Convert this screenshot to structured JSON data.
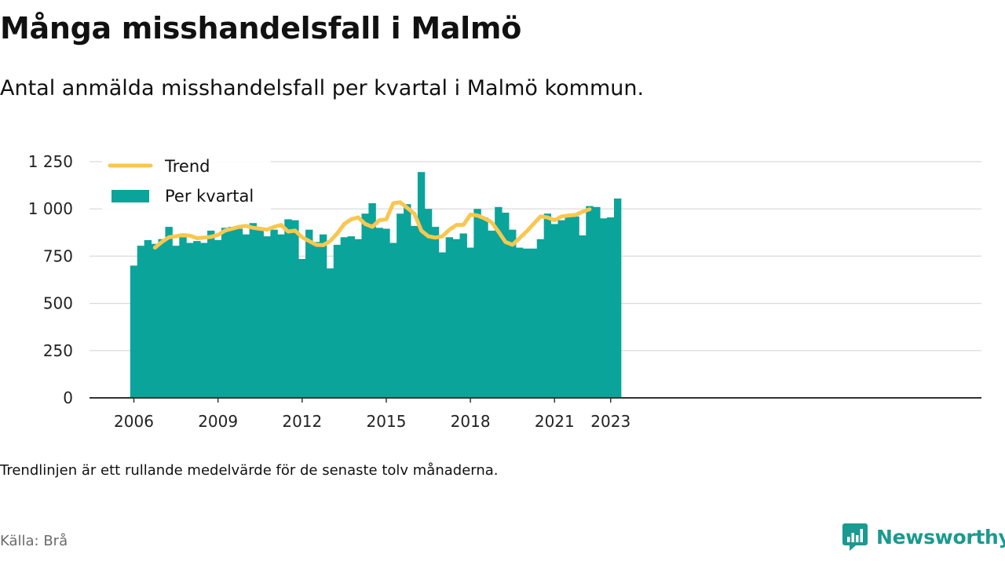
{
  "header": {
    "title": "Många misshandelsfall i Malmö",
    "subtitle": "Antal anmälda misshandelsfall per kvartal i Malmö kommun."
  },
  "footer": {
    "note": "Trendlinjen är ett rullande medelvärde för de senaste tolv månaderna.",
    "source": "Källa: Brå",
    "brand": "Newsworthy"
  },
  "colors": {
    "bars": "#0aa49a",
    "trend": "#f9c74f",
    "grid": "#d9d9d9",
    "axis": "#333333",
    "brand": "#1a9a90"
  },
  "chart_data": {
    "type": "bar",
    "x_start": "2006 Q1",
    "quarters_per_year": 4,
    "series": [
      {
        "name": "Per kvartal",
        "type": "bar",
        "values": [
          700,
          805,
          835,
          815,
          840,
          905,
          805,
          850,
          820,
          830,
          820,
          885,
          835,
          900,
          905,
          895,
          865,
          925,
          900,
          855,
          890,
          865,
          945,
          940,
          735,
          890,
          825,
          865,
          685,
          810,
          850,
          855,
          840,
          975,
          1030,
          900,
          895,
          820,
          975,
          1025,
          910,
          1195,
          1000,
          905,
          770,
          850,
          840,
          870,
          795,
          1000,
          955,
          885,
          1010,
          980,
          890,
          795,
          790,
          790,
          840,
          975,
          920,
          940,
          970,
          960,
          860,
          1015,
          1010,
          950,
          955,
          1055
        ]
      },
      {
        "name": "Trend",
        "type": "line",
        "start_index": 3,
        "values": [
          795,
          825,
          850,
          855,
          862,
          858,
          845,
          848,
          852,
          862,
          885,
          895,
          905,
          910,
          900,
          895,
          890,
          905,
          915,
          880,
          885,
          850,
          830,
          810,
          808,
          830,
          870,
          920,
          945,
          955,
          920,
          905,
          940,
          945,
          1030,
          1035,
          1005,
          975,
          885,
          855,
          848,
          855,
          890,
          915,
          915,
          970,
          965,
          950,
          930,
          880,
          825,
          810,
          845,
          880,
          920,
          960,
          955,
          940,
          960,
          965,
          968,
          985,
          998
        ]
      }
    ],
    "x_ticks": [
      "2006",
      "2009",
      "2012",
      "2015",
      "2018",
      "2021",
      "2023"
    ],
    "y_ticks": [
      "0",
      "250",
      "500",
      "750",
      "1 000",
      "1 250"
    ],
    "y_tick_values": [
      0,
      250,
      500,
      750,
      1000,
      1250
    ],
    "ylim": [
      0,
      1250
    ],
    "legend": {
      "position": "top-left",
      "items": [
        {
          "label": "Trend",
          "kind": "line"
        },
        {
          "label": "Per kvartal",
          "kind": "bar"
        }
      ]
    },
    "grid": true
  }
}
